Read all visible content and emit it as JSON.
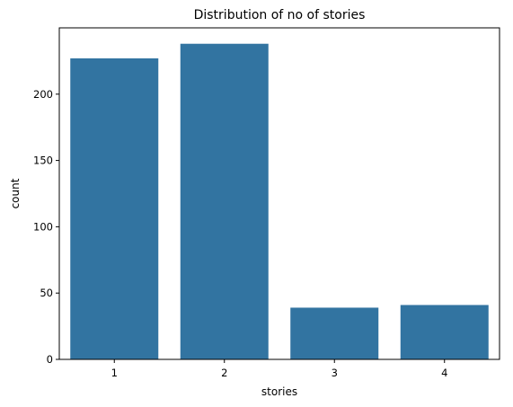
{
  "chart_data": {
    "type": "bar",
    "title": "Distribution of no of stories",
    "xlabel": "stories",
    "ylabel": "count",
    "categories": [
      "1",
      "2",
      "3",
      "4"
    ],
    "values": [
      227,
      238,
      39,
      41
    ],
    "ylim": [
      0,
      250
    ],
    "yticks": [
      0,
      50,
      100,
      150,
      200
    ],
    "grid": false,
    "bar_color": "#3274a1"
  }
}
